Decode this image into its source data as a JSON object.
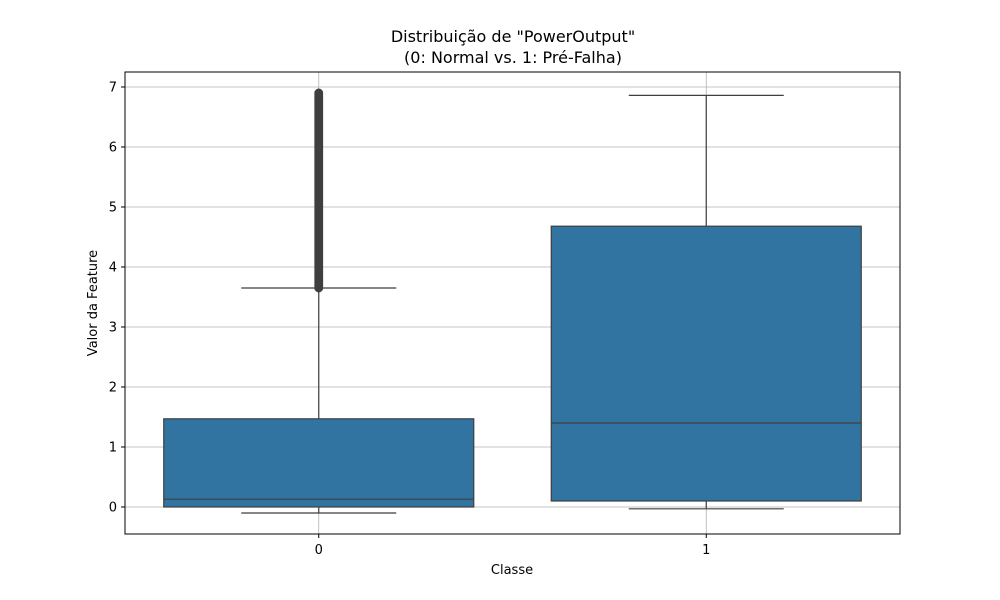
{
  "chart_data": {
    "type": "box",
    "title_line1": "Distribuição de \"PowerOutput\"",
    "title_line2": "(0: Normal vs. 1: Pré-Falha)",
    "xlabel": "Classe",
    "ylabel": "Valor da Feature",
    "categories": [
      "0",
      "1"
    ],
    "ylim": [
      -0.45,
      7.25
    ],
    "yticks": [
      0,
      1,
      2,
      3,
      4,
      5,
      6,
      7
    ],
    "grid": true,
    "box_color": "#3274a1",
    "line_color": "#3f3f3f",
    "boxes": [
      {
        "category": "0",
        "whisker_low": -0.1,
        "q1": 0.0,
        "median": 0.13,
        "q3": 1.47,
        "whisker_high": 3.65,
        "outliers_range": [
          3.65,
          6.9
        ]
      },
      {
        "category": "1",
        "whisker_low": -0.03,
        "q1": 0.1,
        "median": 1.4,
        "q3": 4.68,
        "whisker_high": 6.86,
        "outliers_range": null
      }
    ]
  }
}
